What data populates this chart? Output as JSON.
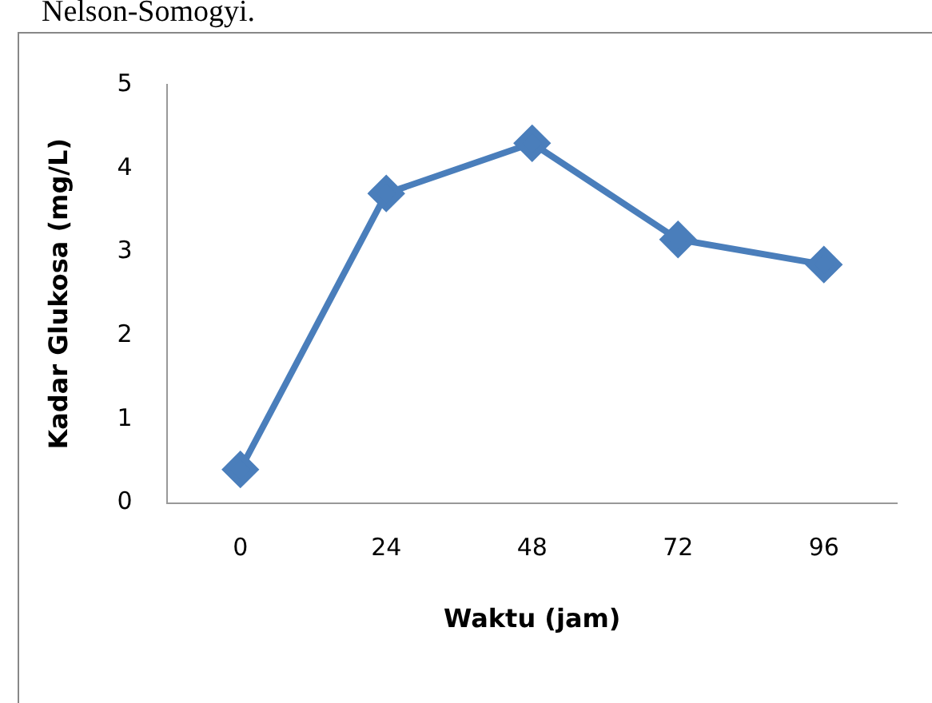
{
  "chart_data": {
    "type": "line",
    "xlabel": "Waktu (jam)",
    "ylabel": "Kadar Glukosa (mg/L)",
    "categories": [
      "0",
      "24",
      "48",
      "72",
      "96"
    ],
    "series": [
      {
        "color": "#4a7ebb",
        "values": [
          0.4,
          3.7,
          4.3,
          3.15,
          2.85
        ]
      }
    ],
    "ylim": [
      0,
      5
    ],
    "yticks": [
      0,
      1,
      2,
      3,
      4,
      5
    ],
    "grid": false,
    "legend": false,
    "marker": "diamond",
    "line_style": "solid",
    "annotations": [
      "Nelson-Somogyi."
    ]
  }
}
